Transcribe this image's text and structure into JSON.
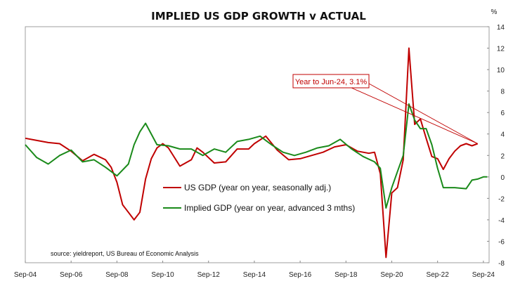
{
  "chart_data": {
    "type": "line",
    "title": "IMPLIED US GDP GROWTH v ACTUAL",
    "y_unit_label": "%",
    "ylim": [
      -8,
      14
    ],
    "y_ticks": [
      14,
      12,
      10,
      8,
      6,
      4,
      2,
      0,
      -2,
      -4,
      -6,
      -8
    ],
    "xlim": [
      "2004-09",
      "2024-12"
    ],
    "x_tick_labels": [
      "Sep-04",
      "Sep-06",
      "Sep-08",
      "Sep-10",
      "Sep-12",
      "Sep-14",
      "Sep-16",
      "Sep-18",
      "Sep-20",
      "Sep-22",
      "Sep-24"
    ],
    "x_tick_dates": [
      "2004-09",
      "2006-09",
      "2008-09",
      "2010-09",
      "2012-09",
      "2014-09",
      "2016-09",
      "2018-09",
      "2020-09",
      "2022-09",
      "2024-09"
    ],
    "grid": false,
    "legend_placement": "lower-center",
    "series": [
      {
        "name": "US GDP (year on year, seasonally adj.)",
        "color": "#c00000",
        "points": [
          [
            "2004-09",
            3.6
          ],
          [
            "2005-03",
            3.4
          ],
          [
            "2005-09",
            3.2
          ],
          [
            "2006-03",
            3.1
          ],
          [
            "2006-09",
            2.4
          ],
          [
            "2007-03",
            1.5
          ],
          [
            "2007-09",
            2.1
          ],
          [
            "2008-03",
            1.6
          ],
          [
            "2008-06",
            0.9
          ],
          [
            "2008-09",
            -0.5
          ],
          [
            "2008-12",
            -2.6
          ],
          [
            "2009-03",
            -3.3
          ],
          [
            "2009-06",
            -4.0
          ],
          [
            "2009-09",
            -3.3
          ],
          [
            "2009-12",
            -0.2
          ],
          [
            "2010-03",
            1.7
          ],
          [
            "2010-06",
            2.7
          ],
          [
            "2010-09",
            3.1
          ],
          [
            "2010-12",
            2.7
          ],
          [
            "2011-06",
            1.0
          ],
          [
            "2011-12",
            1.6
          ],
          [
            "2012-03",
            2.7
          ],
          [
            "2012-06",
            2.3
          ],
          [
            "2012-12",
            1.3
          ],
          [
            "2013-06",
            1.4
          ],
          [
            "2013-12",
            2.6
          ],
          [
            "2014-06",
            2.6
          ],
          [
            "2014-09",
            3.1
          ],
          [
            "2015-03",
            3.8
          ],
          [
            "2015-09",
            2.5
          ],
          [
            "2016-03",
            1.6
          ],
          [
            "2016-09",
            1.7
          ],
          [
            "2017-03",
            2.0
          ],
          [
            "2017-09",
            2.3
          ],
          [
            "2018-03",
            2.8
          ],
          [
            "2018-09",
            3.0
          ],
          [
            "2019-03",
            2.4
          ],
          [
            "2019-09",
            2.2
          ],
          [
            "2019-12",
            2.3
          ],
          [
            "2020-03",
            0.3
          ],
          [
            "2020-06",
            -7.5
          ],
          [
            "2020-09",
            -1.5
          ],
          [
            "2020-12",
            -1.0
          ],
          [
            "2021-03",
            1.6
          ],
          [
            "2021-06",
            12.0
          ],
          [
            "2021-09",
            4.9
          ],
          [
            "2021-12",
            5.4
          ],
          [
            "2022-03",
            3.6
          ],
          [
            "2022-06",
            1.9
          ],
          [
            "2022-09",
            1.7
          ],
          [
            "2022-12",
            0.7
          ],
          [
            "2023-03",
            1.7
          ],
          [
            "2023-06",
            2.4
          ],
          [
            "2023-09",
            2.9
          ],
          [
            "2023-12",
            3.1
          ],
          [
            "2024-03",
            2.9
          ],
          [
            "2024-06",
            3.1
          ]
        ]
      },
      {
        "name": "Implied GDP (year on year, advanced 3 mths)",
        "color": "#1a8a1a",
        "points": [
          [
            "2004-09",
            3.0
          ],
          [
            "2005-03",
            1.8
          ],
          [
            "2005-09",
            1.2
          ],
          [
            "2006-03",
            2.0
          ],
          [
            "2006-09",
            2.5
          ],
          [
            "2007-03",
            1.4
          ],
          [
            "2007-09",
            1.6
          ],
          [
            "2008-03",
            0.9
          ],
          [
            "2008-09",
            0.1
          ],
          [
            "2009-03",
            1.2
          ],
          [
            "2009-06",
            3.0
          ],
          [
            "2009-09",
            4.2
          ],
          [
            "2009-12",
            5.0
          ],
          [
            "2010-06",
            3.0
          ],
          [
            "2010-12",
            2.9
          ],
          [
            "2011-06",
            2.6
          ],
          [
            "2011-12",
            2.6
          ],
          [
            "2012-06",
            2.0
          ],
          [
            "2012-12",
            2.6
          ],
          [
            "2013-06",
            2.3
          ],
          [
            "2013-12",
            3.3
          ],
          [
            "2014-06",
            3.5
          ],
          [
            "2014-12",
            3.8
          ],
          [
            "2015-06",
            3.0
          ],
          [
            "2015-12",
            2.3
          ],
          [
            "2016-06",
            2.0
          ],
          [
            "2016-12",
            2.3
          ],
          [
            "2017-06",
            2.7
          ],
          [
            "2017-12",
            2.9
          ],
          [
            "2018-06",
            3.5
          ],
          [
            "2018-12",
            2.6
          ],
          [
            "2019-06",
            1.9
          ],
          [
            "2019-12",
            1.4
          ],
          [
            "2020-03",
            0.8
          ],
          [
            "2020-06",
            -2.9
          ],
          [
            "2020-09",
            -1.0
          ],
          [
            "2020-12",
            0.5
          ],
          [
            "2021-03",
            2.0
          ],
          [
            "2021-06",
            6.8
          ],
          [
            "2021-09",
            5.3
          ],
          [
            "2021-12",
            4.5
          ],
          [
            "2022-03",
            4.5
          ],
          [
            "2022-06",
            3.0
          ],
          [
            "2022-09",
            0.8
          ],
          [
            "2022-12",
            -1.0
          ],
          [
            "2023-06",
            -1.0
          ],
          [
            "2023-12",
            -1.1
          ],
          [
            "2024-03",
            -0.3
          ],
          [
            "2024-06",
            -0.2
          ],
          [
            "2024-09",
            0.0
          ],
          [
            "2024-11",
            0.0
          ]
        ]
      }
    ],
    "annotation": {
      "text": "Year to Jun-24, 3.1%",
      "target": [
        "2024-06",
        3.1
      ]
    },
    "source": "source: yieldreport, US Bureau of Economic Analysis"
  }
}
